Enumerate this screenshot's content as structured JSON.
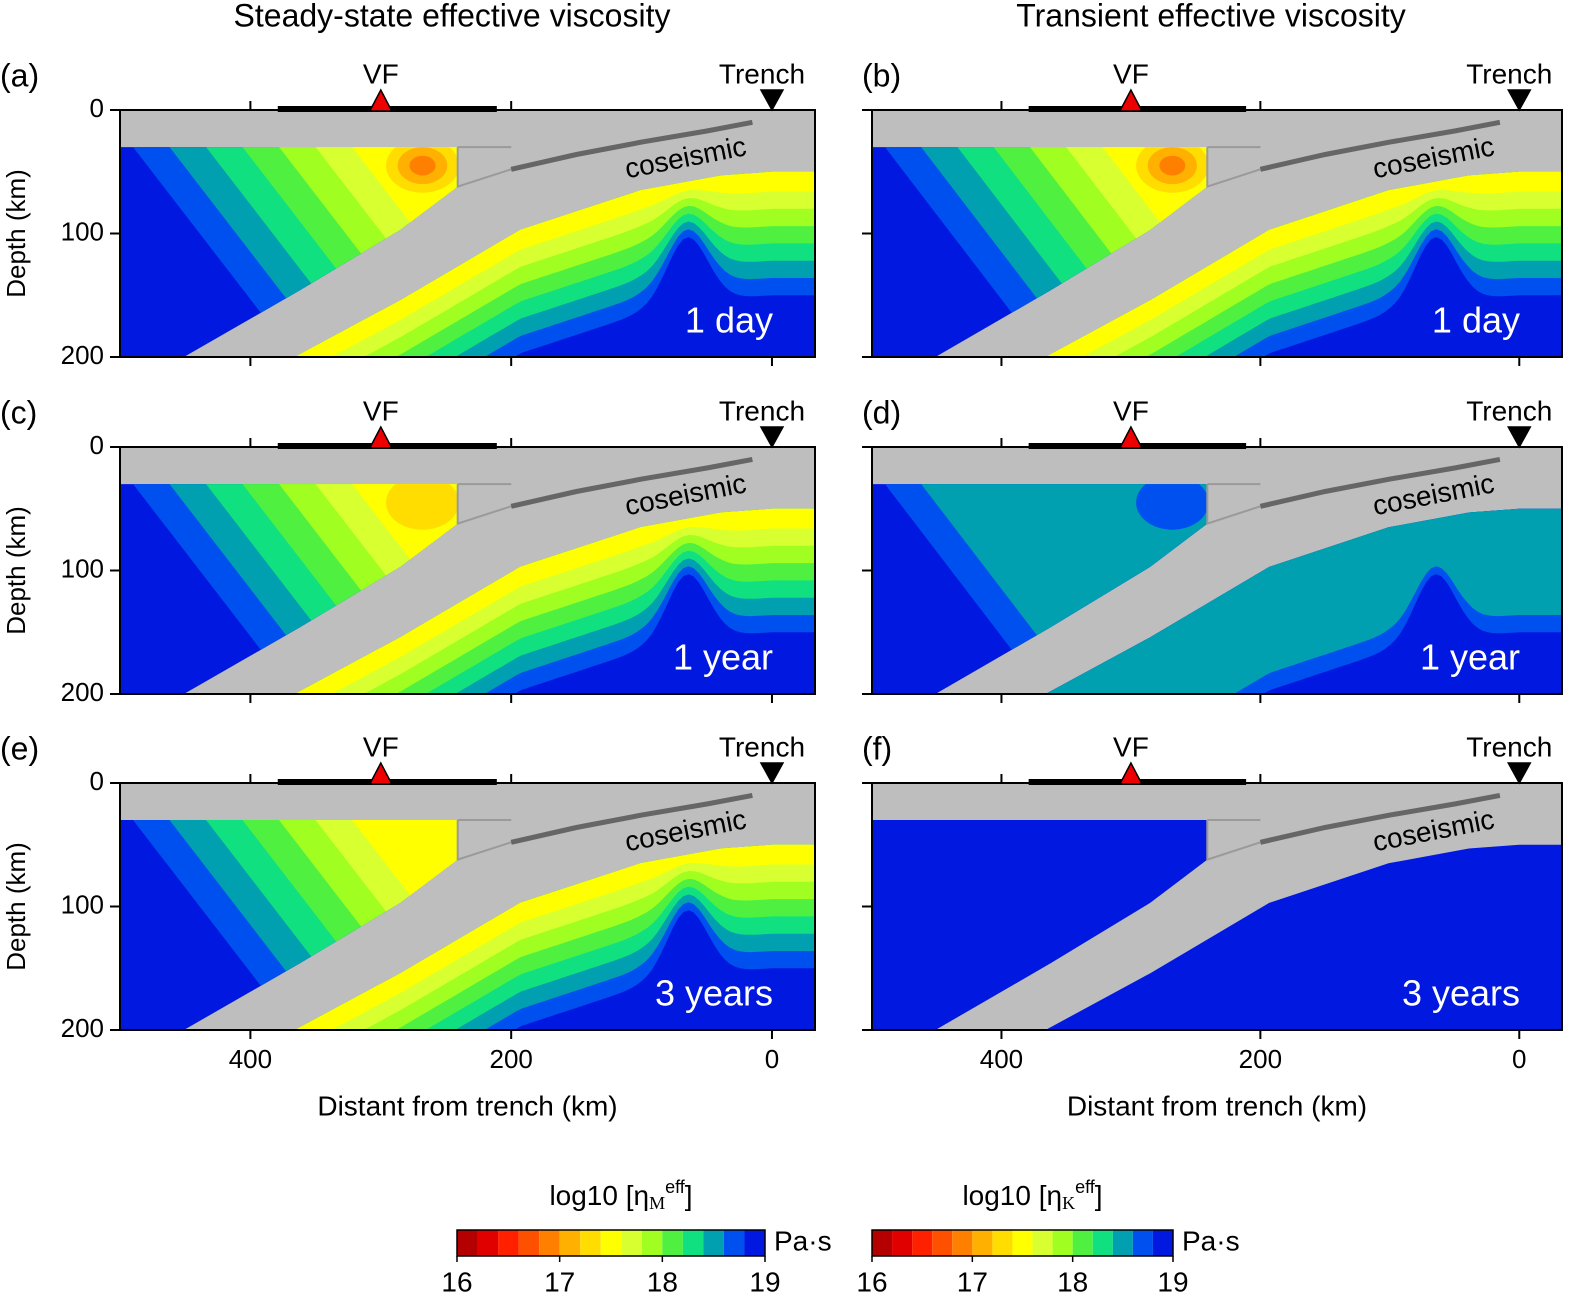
{
  "titles": [
    "Steady-state effective viscosity",
    "Transient effective viscosity"
  ],
  "chart_data": [
    {
      "type": "contour",
      "panel": "(a)",
      "time": "1 day",
      "xlim": [
        500,
        -33
      ],
      "ylim": [
        0,
        200
      ],
      "xticks": [
        400,
        200,
        0
      ],
      "yticks": [
        0,
        100,
        200
      ],
      "show_xtick_labels": false,
      "show_ytick_labels": true,
      "ylabel": "Depth (km)",
      "markers": [
        {
          "label": "VF",
          "x": 300
        },
        {
          "label": "Trench",
          "x": 0
        }
      ],
      "arc": [
        379,
        211
      ],
      "slab_label": "coseismic"
    },
    {
      "type": "contour",
      "panel": "(b)",
      "time": "1 day",
      "xlim": [
        500,
        -33
      ],
      "ylim": [
        0,
        200
      ],
      "xticks": [
        400,
        200,
        0
      ],
      "yticks": [
        0,
        100,
        200
      ],
      "show_xtick_labels": false,
      "show_ytick_labels": false,
      "markers": [
        {
          "label": "VF",
          "x": 300
        },
        {
          "label": "Trench",
          "x": 0
        }
      ],
      "arc": [
        379,
        211
      ],
      "slab_label": "coseismic"
    },
    {
      "type": "contour",
      "panel": "(c)",
      "time": "1 year",
      "xlim": [
        500,
        -33
      ],
      "ylim": [
        0,
        200
      ],
      "xticks": [
        400,
        200,
        0
      ],
      "yticks": [
        0,
        100,
        200
      ],
      "show_xtick_labels": false,
      "show_ytick_labels": true,
      "ylabel": "Depth (km)",
      "markers": [
        {
          "label": "VF",
          "x": 300
        },
        {
          "label": "Trench",
          "x": 0
        }
      ],
      "arc": [
        379,
        211
      ],
      "slab_label": "coseismic"
    },
    {
      "type": "contour",
      "panel": "(d)",
      "time": "1 year",
      "xlim": [
        500,
        -33
      ],
      "ylim": [
        0,
        200
      ],
      "xticks": [
        400,
        200,
        0
      ],
      "yticks": [
        0,
        100,
        200
      ],
      "show_xtick_labels": false,
      "show_ytick_labels": false,
      "markers": [
        {
          "label": "VF",
          "x": 300
        },
        {
          "label": "Trench",
          "x": 0
        }
      ],
      "arc": [
        379,
        211
      ],
      "slab_label": "coseismic"
    },
    {
      "type": "contour",
      "panel": "(e)",
      "time": "3 years",
      "xlim": [
        500,
        -33
      ],
      "ylim": [
        0,
        200
      ],
      "xticks": [
        400,
        200,
        0
      ],
      "yticks": [
        0,
        100,
        200
      ],
      "show_xtick_labels": true,
      "show_ytick_labels": true,
      "ylabel": "Depth (km)",
      "xlabel": "Distant from trench (km)",
      "markers": [
        {
          "label": "VF",
          "x": 300
        },
        {
          "label": "Trench",
          "x": 0
        }
      ],
      "arc": [
        379,
        211
      ],
      "slab_label": "coseismic"
    },
    {
      "type": "contour",
      "panel": "(f)",
      "time": "3 years",
      "xlim": [
        500,
        -33
      ],
      "ylim": [
        0,
        200
      ],
      "xticks": [
        400,
        200,
        0
      ],
      "yticks": [
        0,
        100,
        200
      ],
      "show_xtick_labels": true,
      "show_ytick_labels": false,
      "xlabel": "Distant from trench (km)",
      "markers": [
        {
          "label": "VF",
          "x": 300
        },
        {
          "label": "Trench",
          "x": 0
        }
      ],
      "arc": [
        379,
        211
      ],
      "slab_label": "coseismic"
    },
    {
      "type": "colorbar",
      "label": "log10 [η",
      "label_sub": "M",
      "label_sup": "eff",
      "label_end": "]",
      "unit": "Pa·s",
      "xlim": [
        16,
        19
      ],
      "xticks": [
        16,
        17,
        18,
        19
      ],
      "levels": [
        16,
        16.2,
        16.4,
        16.6,
        16.8,
        17,
        17.2,
        17.4,
        17.6,
        17.8,
        18,
        18.2,
        18.4,
        18.6,
        18.8
      ],
      "colors": [
        "#b40000",
        "#e00000",
        "#ff2000",
        "#ff5000",
        "#ff8000",
        "#ffb000",
        "#ffdd00",
        "#ffff00",
        "#d8ff30",
        "#a0ff20",
        "#50f040",
        "#10e080",
        "#00a0b0",
        "#0050f0",
        "#0018e0"
      ]
    },
    {
      "type": "colorbar",
      "label": "log10 [η",
      "label_sub": "K",
      "label_sup": "eff",
      "label_end": "]",
      "unit": "Pa·s",
      "xlim": [
        16,
        19
      ],
      "xticks": [
        16,
        17,
        18,
        19
      ],
      "levels": [
        16,
        16.2,
        16.4,
        16.6,
        16.8,
        17,
        17.2,
        17.4,
        17.6,
        17.8,
        18,
        18.2,
        18.4,
        18.6,
        18.8
      ],
      "colors": [
        "#b40000",
        "#e00000",
        "#ff2000",
        "#ff5000",
        "#ff8000",
        "#ffb000",
        "#ffdd00",
        "#ffff00",
        "#d8ff30",
        "#a0ff20",
        "#50f040",
        "#10e080",
        "#00a0b0",
        "#0050f0",
        "#0018e0"
      ]
    }
  ]
}
